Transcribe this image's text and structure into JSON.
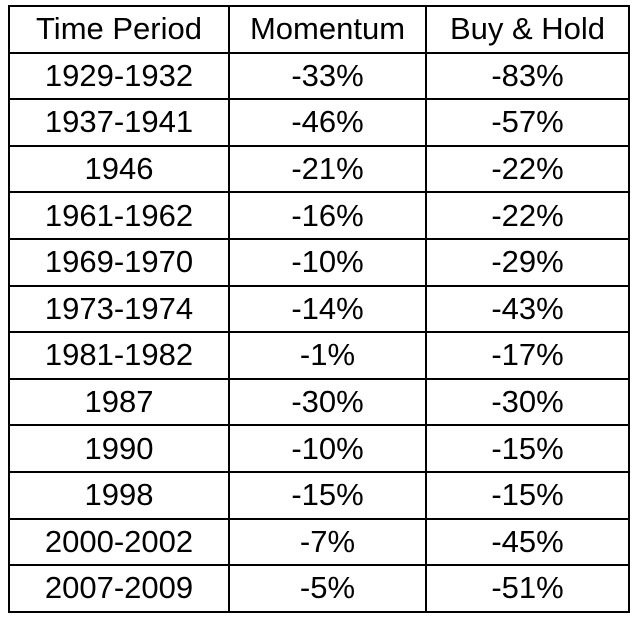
{
  "table": {
    "header": [
      "Time Period",
      "Momentum",
      "Buy & Hold"
    ],
    "rows": [
      [
        "1929-1932",
        "-33%",
        "-83%"
      ],
      [
        "1937-1941",
        "-46%",
        "-57%"
      ],
      [
        "1946",
        "-21%",
        "-22%"
      ],
      [
        "1961-1962",
        "-16%",
        "-22%"
      ],
      [
        "1969-1970",
        "-10%",
        "-29%"
      ],
      [
        "1973-1974",
        "-14%",
        "-43%"
      ],
      [
        "1981-1982",
        "-1%",
        "-17%"
      ],
      [
        "1987",
        "-30%",
        "-30%"
      ],
      [
        "1990",
        "-10%",
        "-15%"
      ],
      [
        "1998",
        "-15%",
        "-15%"
      ],
      [
        "2000-2002",
        "-7%",
        "-45%"
      ],
      [
        "2007-2009",
        "-5%",
        "-51%"
      ]
    ]
  }
}
